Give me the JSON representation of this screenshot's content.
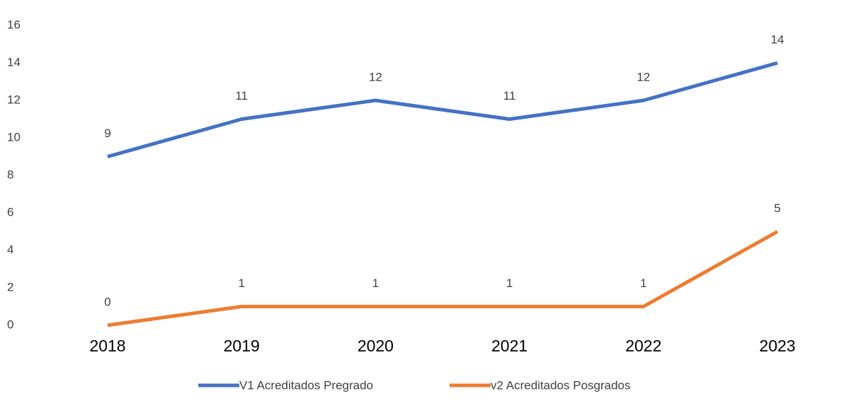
{
  "chart_data": {
    "type": "line",
    "categories": [
      "2018",
      "2019",
      "2020",
      "2021",
      "2022",
      "2023"
    ],
    "series": [
      {
        "name": "V1 Acreditados Pregrado",
        "color": "#4472c4",
        "values": [
          9,
          11,
          12,
          11,
          12,
          14
        ]
      },
      {
        "name": "v2 Acreditados Posgrados",
        "color": "#ed7d31",
        "values": [
          0,
          1,
          1,
          1,
          1,
          5
        ]
      }
    ],
    "ylim": [
      0,
      16
    ],
    "yticks": [
      0,
      2,
      4,
      6,
      8,
      10,
      12,
      14,
      16
    ],
    "grid": false,
    "legend": "bottom"
  }
}
